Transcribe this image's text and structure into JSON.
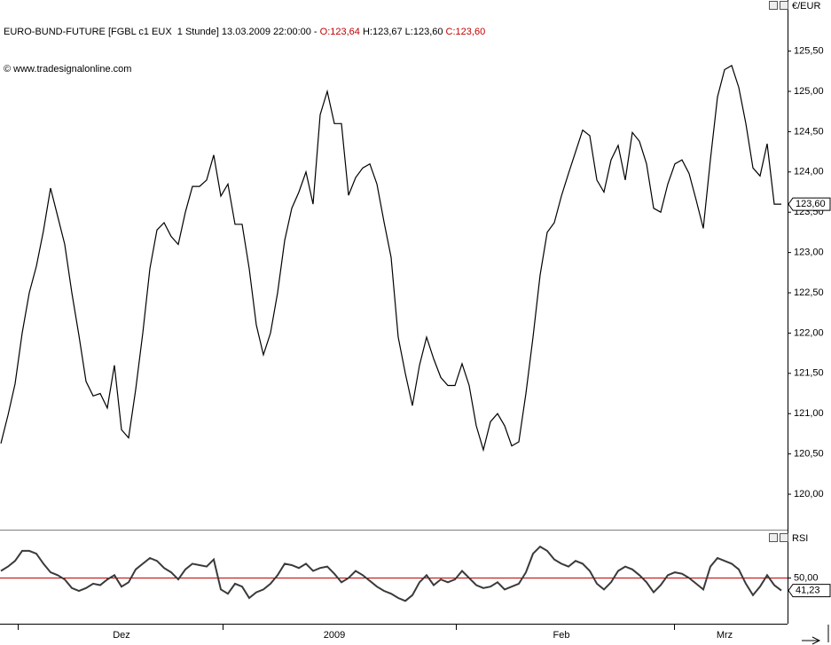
{
  "header": {
    "parts": [
      {
        "text": "EURO-BUND-FUTURE [FGBL c1 EUX  1 Stunde] 13.03.2009 22:00:00 - ",
        "color": "#000000"
      },
      {
        "text": "O:123,64",
        "color": "#c00000"
      },
      {
        "text": " H:123,67 L:123,60 ",
        "color": "#000000"
      },
      {
        "text": "C:123,60",
        "color": "#c00000"
      }
    ],
    "subtitle": "© www.tradesignalonline.com"
  },
  "chart_data": [
    {
      "type": "line",
      "y_label": "€/EUR",
      "color": "#000000",
      "values": [
        120.63,
        120.98,
        121.37,
        122.0,
        122.5,
        122.83,
        123.27,
        123.8,
        123.45,
        123.1,
        122.5,
        121.97,
        121.4,
        121.22,
        121.25,
        121.07,
        121.6,
        120.8,
        120.7,
        121.3,
        122.0,
        122.8,
        123.28,
        123.37,
        123.2,
        123.1,
        123.5,
        123.82,
        123.82,
        123.9,
        124.21,
        123.7,
        123.85,
        123.35,
        123.35,
        122.8,
        122.1,
        121.73,
        122.0,
        122.5,
        123.15,
        123.55,
        123.75,
        124.0,
        123.6,
        124.71,
        125.0,
        124.6,
        124.6,
        123.71,
        123.93,
        124.05,
        124.1,
        123.85,
        123.38,
        122.94,
        121.95,
        121.5,
        121.1,
        121.6,
        121.95,
        121.68,
        121.45,
        121.35,
        121.35,
        121.62,
        121.35,
        120.85,
        120.55,
        120.9,
        121.0,
        120.85,
        120.6,
        120.65,
        121.25,
        121.95,
        122.72,
        123.25,
        123.37,
        123.7,
        123.98,
        124.25,
        124.52,
        124.45,
        123.9,
        123.75,
        124.15,
        124.33,
        123.9,
        124.49,
        124.38,
        124.1,
        123.55,
        123.5,
        123.85,
        124.1,
        124.15,
        123.98,
        123.65,
        123.3,
        124.15,
        124.93,
        125.27,
        125.32,
        125.05,
        124.6,
        124.05,
        123.95,
        124.35,
        123.6,
        123.6
      ],
      "ylim": [
        119.56,
        125.98
      ],
      "yticks": [
        {
          "value": 120.0,
          "label": "120,00"
        },
        {
          "value": 120.5,
          "label": "120,50"
        },
        {
          "value": 121.0,
          "label": "121,00"
        },
        {
          "value": 121.5,
          "label": "121,50"
        },
        {
          "value": 122.0,
          "label": "122,00"
        },
        {
          "value": 122.5,
          "label": "122,50"
        },
        {
          "value": 123.0,
          "label": "123,00"
        },
        {
          "value": 123.5,
          "label": "123,50"
        },
        {
          "value": 124.0,
          "label": "124,00"
        },
        {
          "value": 124.5,
          "label": "124,50"
        },
        {
          "value": 125.0,
          "label": "125,00"
        },
        {
          "value": 125.5,
          "label": "125,50"
        }
      ],
      "last_label": {
        "value": 123.6,
        "label": "123,60"
      }
    },
    {
      "type": "line",
      "title": "RSI",
      "color": "#3a3a3a",
      "categories": [
        null,
        null,
        null,
        null,
        null,
        null,
        null,
        null,
        null,
        null,
        null,
        null,
        null,
        null,
        null,
        null,
        null,
        "Dez",
        null,
        null,
        null,
        null,
        null,
        null,
        null,
        null,
        null,
        null,
        null,
        null,
        null,
        null,
        null,
        null,
        null,
        null,
        null,
        null,
        null,
        null,
        null,
        null,
        null,
        null,
        null,
        null,
        null,
        "2009",
        null,
        null,
        null,
        null,
        null,
        null,
        null,
        null,
        null,
        null,
        null,
        null,
        null,
        null,
        null,
        null,
        null,
        null,
        null,
        null,
        null,
        null,
        null,
        null,
        null,
        null,
        null,
        null,
        null,
        null,
        null,
        "Feb",
        null,
        null,
        null,
        null,
        null,
        null,
        null,
        null,
        null,
        null,
        null,
        null,
        null,
        null,
        null,
        null,
        null,
        null,
        null,
        null,
        null,
        null,
        "Mrz",
        null,
        null,
        null,
        null,
        null,
        null,
        null,
        null
      ],
      "values": [
        55,
        58,
        62,
        69,
        69,
        67,
        60,
        54,
        52,
        49,
        43,
        41,
        43,
        46,
        45,
        49,
        52,
        44,
        47,
        56,
        60,
        64,
        62,
        57,
        54,
        49,
        56,
        60,
        59,
        58,
        63,
        42,
        39,
        46,
        44,
        36,
        40,
        42,
        46,
        52,
        60,
        59,
        57,
        60,
        55,
        57,
        58,
        53,
        47,
        50,
        55,
        52,
        48,
        44,
        41,
        39,
        36,
        34,
        38,
        47,
        52,
        45,
        49,
        47,
        49,
        55,
        50,
        45,
        43,
        44,
        47,
        42,
        44,
        46,
        54,
        67,
        72,
        69,
        63,
        60,
        58,
        62,
        60,
        55,
        46,
        42,
        47,
        55,
        58,
        56,
        52,
        47,
        40,
        45,
        52,
        54,
        53,
        50,
        46,
        42,
        58,
        64,
        62,
        60,
        56,
        46,
        38,
        44,
        52,
        45,
        41.23
      ],
      "ylim": [
        18,
        82
      ],
      "yticks": [
        {
          "value": 50,
          "label": "50,00"
        }
      ],
      "reference_color": "#c00000",
      "last_label": {
        "value": 41.23,
        "label": "41,23"
      }
    }
  ]
}
